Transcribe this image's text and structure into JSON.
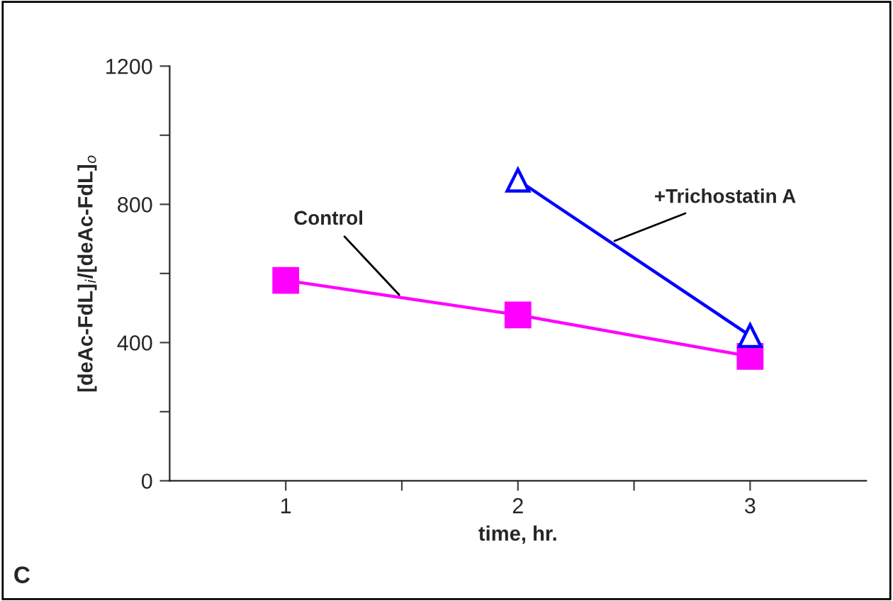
{
  "chart_data": {
    "type": "line",
    "xlabel": "time, hr.",
    "ylabel": "[deAc-FdL]$_{i}$/[deAc-FdL]$_{o}$",
    "x": [
      1,
      2,
      3
    ],
    "series": [
      {
        "name": "Control",
        "color": "#ff00ff",
        "values": [
          580,
          480,
          360
        ],
        "marker": "square"
      },
      {
        "name": "+Trichostatin A",
        "color": "#0000ff",
        "x": [
          2,
          3
        ],
        "values": [
          870,
          420
        ],
        "marker": "triangle"
      }
    ],
    "xlim": [
      0.5,
      3.5
    ],
    "xticks": [
      1,
      {
        "value": 1.5,
        "label": null
      },
      2,
      {
        "value": 2.5,
        "label": null
      },
      3
    ],
    "ylim": [
      0,
      1200
    ],
    "yticks": [
      0,
      {
        "value": 200,
        "label": null
      },
      400,
      {
        "value": 600,
        "label": null
      },
      800,
      {
        "value": 1000,
        "label": null
      },
      1200
    ],
    "annotations": [
      "C"
    ],
    "grid": false,
    "legend": false,
    "line_style": "solid"
  }
}
